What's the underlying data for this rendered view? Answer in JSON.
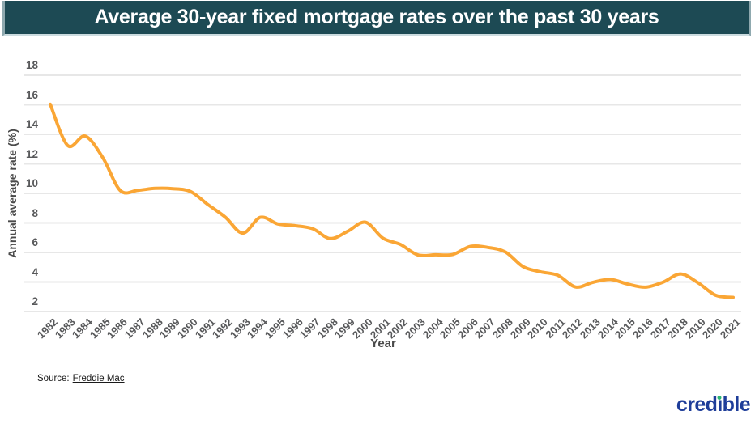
{
  "header": {
    "title": "Average 30-year fixed mortgage rates over the past 30 years"
  },
  "footer": {
    "source_prefix": "Source:",
    "source_link": "Freddie Mac"
  },
  "brand": {
    "name": "credible",
    "pre": "cred",
    "dotless_i": "ı",
    "post": "ble"
  },
  "colors": {
    "title_bar_bg": "#1d4a54",
    "line": "#FAA635",
    "gridline": "#e7e7e7",
    "tick_text": "#58595b",
    "brand_blue": "#1e3d99",
    "brand_green": "#2bb673"
  },
  "chart_data": {
    "type": "line",
    "title": "Average 30-year fixed mortgage rates over the past 30 years",
    "xlabel": "Year",
    "ylabel": "Annual average rate (%)",
    "ylim": [
      2,
      18
    ],
    "yticks": [
      18,
      16,
      14,
      12,
      10,
      8,
      6,
      4,
      2
    ],
    "grid": true,
    "legend": "none",
    "x": [
      1982,
      1983,
      1984,
      1985,
      1986,
      1987,
      1988,
      1989,
      1990,
      1991,
      1992,
      1993,
      1994,
      1995,
      1996,
      1997,
      1998,
      1999,
      2000,
      2001,
      2002,
      2003,
      2004,
      2005,
      2006,
      2007,
      2008,
      2009,
      2010,
      2011,
      2012,
      2013,
      2014,
      2015,
      2016,
      2017,
      2018,
      2019,
      2020,
      2021
    ],
    "series": [
      {
        "name": "Average 30-year fixed mortgage rate (%)",
        "values": [
          16.04,
          13.24,
          13.88,
          12.43,
          10.19,
          10.21,
          10.34,
          10.32,
          10.13,
          9.25,
          8.39,
          7.31,
          8.38,
          7.93,
          7.81,
          7.6,
          6.94,
          7.44,
          8.05,
          6.97,
          6.54,
          5.83,
          5.84,
          5.87,
          6.41,
          6.34,
          6.03,
          5.04,
          4.69,
          4.45,
          3.66,
          3.98,
          4.17,
          3.85,
          3.65,
          3.99,
          4.54,
          3.94,
          3.1,
          2.96
        ]
      }
    ]
  }
}
